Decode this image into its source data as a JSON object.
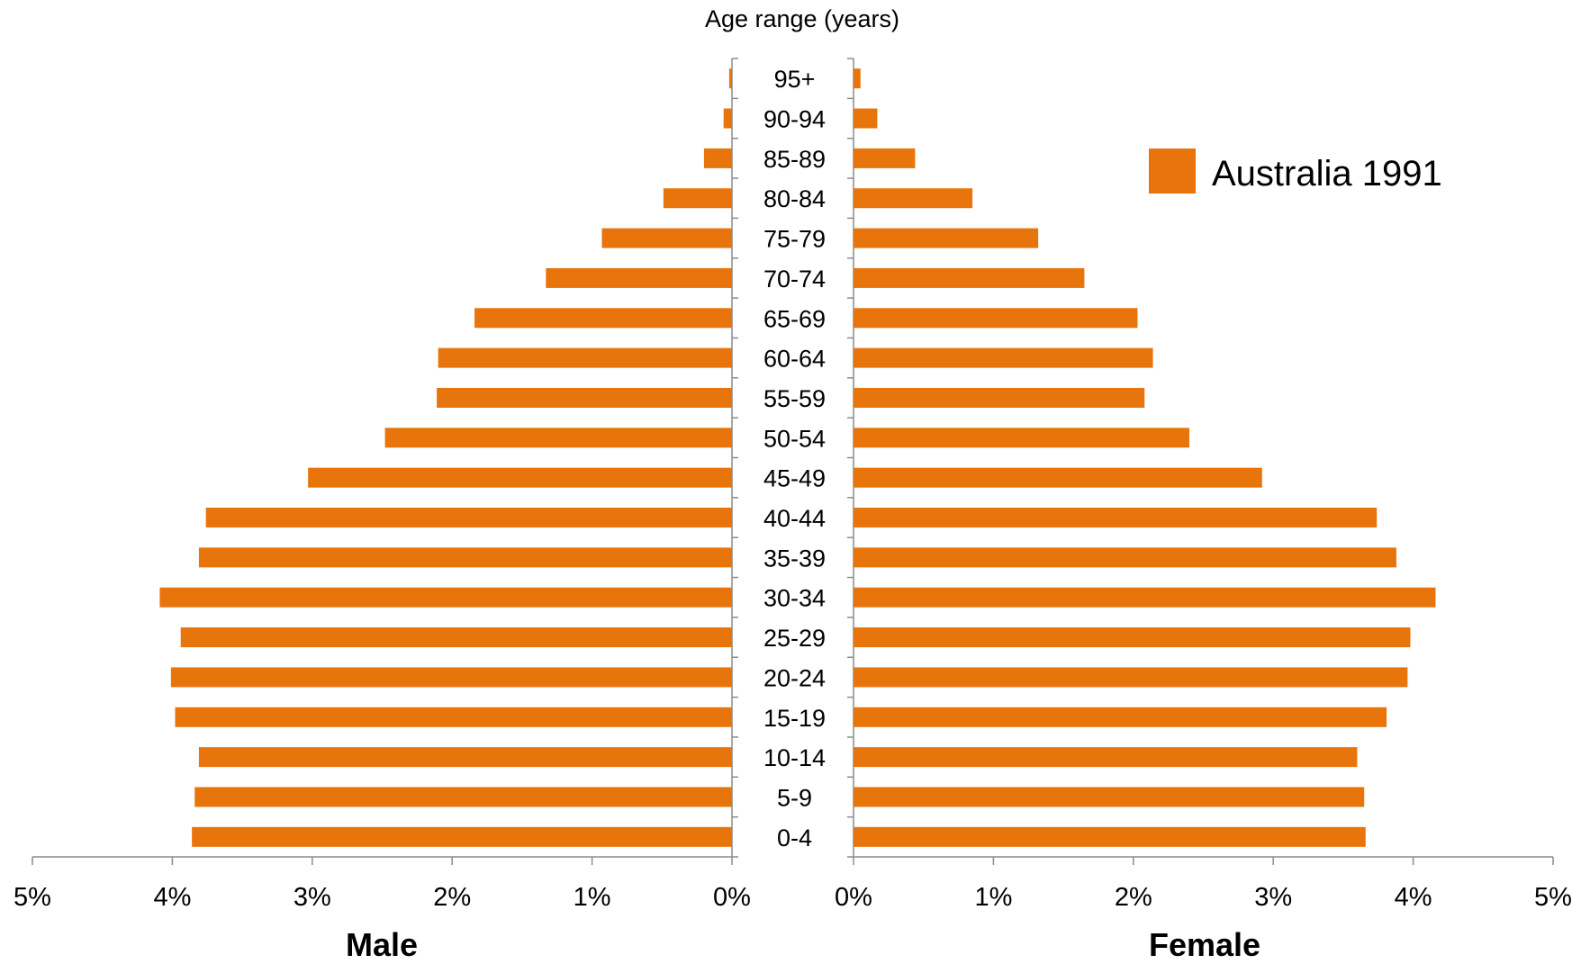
{
  "chart_data": {
    "type": "bar",
    "subtype": "population-pyramid",
    "axis_title": "Age range (years)",
    "categories": [
      "95+",
      "90-94",
      "85-89",
      "80-84",
      "75-79",
      "70-74",
      "65-69",
      "60-64",
      "55-59",
      "50-54",
      "45-49",
      "40-44",
      "35-39",
      "30-34",
      "25-29",
      "20-24",
      "15-19",
      "10-14",
      "5-9",
      "0-4"
    ],
    "series": [
      {
        "name": "Male",
        "side": "left",
        "values": [
          0.02,
          0.06,
          0.2,
          0.49,
          0.93,
          1.33,
          1.84,
          2.1,
          2.11,
          2.48,
          3.03,
          3.76,
          3.81,
          4.09,
          3.94,
          4.01,
          3.98,
          3.81,
          3.84,
          3.86
        ]
      },
      {
        "name": "Female",
        "side": "right",
        "values": [
          0.05,
          0.17,
          0.44,
          0.85,
          1.32,
          1.65,
          2.03,
          2.14,
          2.08,
          2.4,
          2.92,
          3.74,
          3.88,
          4.16,
          3.98,
          3.96,
          3.81,
          3.6,
          3.65,
          3.66
        ]
      }
    ],
    "ticks": [
      "5%",
      "4%",
      "3%",
      "2%",
      "1%",
      "0%"
    ],
    "ticks_right": [
      "0%",
      "1%",
      "2%",
      "3%",
      "4%",
      "5%"
    ],
    "xlim": [
      0,
      5
    ],
    "left_label": "Male",
    "right_label": "Female",
    "legend": {
      "label": "Australia 1991",
      "position": "top-right"
    },
    "bar_color": "#E8740C",
    "grid": false
  }
}
